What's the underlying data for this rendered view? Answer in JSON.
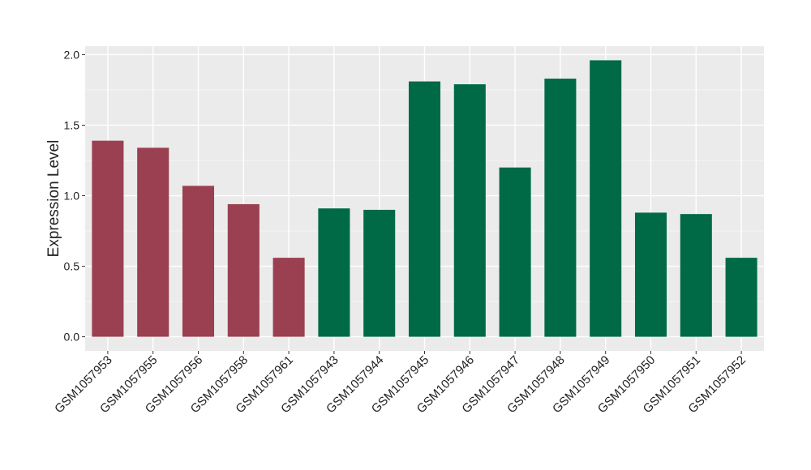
{
  "chart_data": {
    "type": "bar",
    "y_label": "Expression Level",
    "categories": [
      "GSM1057953",
      "GSM1057955",
      "GSM1057956",
      "GSM1057958",
      "GSM1057961",
      "GSM1057943",
      "GSM1057944",
      "GSM1057945",
      "GSM1057946",
      "GSM1057947",
      "GSM1057948",
      "GSM1057949",
      "GSM1057950",
      "GSM1057951",
      "GSM1057952"
    ],
    "values": [
      1.39,
      1.34,
      1.07,
      0.94,
      0.56,
      0.91,
      0.9,
      1.81,
      1.79,
      1.2,
      1.83,
      1.96,
      0.88,
      0.87,
      0.56
    ],
    "colors": [
      "#9a4050",
      "#9a4050",
      "#9a4050",
      "#9a4050",
      "#9a4050",
      "#006a46",
      "#006a46",
      "#006a46",
      "#006a46",
      "#006a46",
      "#006a46",
      "#006a46",
      "#006a46",
      "#006a46",
      "#006a46"
    ],
    "ylim": [
      -0.1,
      2.06
    ],
    "yticks": [
      {
        "value": 0,
        "label": "0.0"
      },
      {
        "value": 0.5,
        "label": "0.5"
      },
      {
        "value": 1,
        "label": "1.0"
      },
      {
        "value": 1.5,
        "label": "1.5"
      },
      {
        "value": 2,
        "label": "2.0"
      }
    ],
    "minor_yticks": [
      0.25,
      0.75,
      1.25,
      1.75
    ],
    "grid": true
  }
}
